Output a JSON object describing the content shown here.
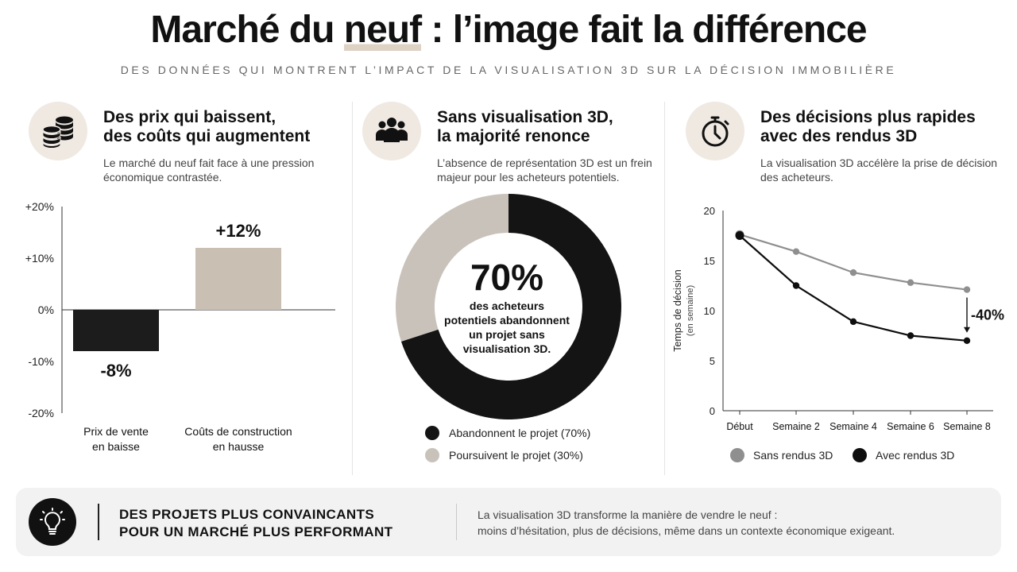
{
  "header": {
    "title_pre": "Marché du ",
    "title_highlight": "neuf",
    "title_post": " : l’image fait la différence",
    "subtitle": "DES DONNÉES QUI MONTRENT L’IMPACT DE LA VISUALISATION 3D SUR LA DÉCISION IMMOBILIÈRE"
  },
  "columns": [
    {
      "icon": "coins-stack-icon",
      "title_line1": "Des prix qui baissent,",
      "title_line2": "des coûts qui augmentent",
      "desc_line1": "Le marché du neuf fait face à une pression",
      "desc_line2": "économique contrastée."
    },
    {
      "icon": "people-group-icon",
      "title_line1": "Sans visualisation 3D,",
      "title_line2": "la majorité renonce",
      "desc_line1": "L’absence de représentation 3D est un frein",
      "desc_line2": "majeur pour les acheteurs potentiels."
    },
    {
      "icon": "stopwatch-icon",
      "title_line1": "Des décisions plus rapides",
      "title_line2": "avec des rendus 3D",
      "desc_line1": "La visualisation 3D accélère la prise de décision",
      "desc_line2": "des acheteurs."
    }
  ],
  "chart_data": [
    {
      "type": "bar",
      "categories": [
        [
          "Prix de vente",
          "en baisse"
        ],
        [
          "Coûts de construction",
          "en hausse"
        ]
      ],
      "values": [
        -8,
        12
      ],
      "value_labels": [
        "-8%",
        "+12%"
      ],
      "colors": [
        "#1c1c1c",
        "#c9bfb3"
      ],
      "yticks": [
        "+20%",
        "+10%",
        "0%",
        "-10%",
        "-20%"
      ],
      "ylim": [
        -20,
        20
      ]
    },
    {
      "type": "pie",
      "slices": [
        {
          "label": "Abandonnent le projet (70%)",
          "value": 70,
          "color": "#141414"
        },
        {
          "label": "Poursuivent le projet (30%)",
          "value": 30,
          "color": "#c9c2ba"
        }
      ],
      "center_value": "70%",
      "center_text": [
        "des acheteurs",
        "potentiels abandonnent",
        "un projet sans",
        "visualisation 3D."
      ]
    },
    {
      "type": "line",
      "categories": [
        "Début",
        "Semaine 2",
        "Semaine 4",
        "Semaine 6",
        "Semaine 8"
      ],
      "ylabel": "Temps de décision",
      "ylabel2": "(en semaine)",
      "yticks": [
        "20",
        "15",
        "10",
        "5",
        "0"
      ],
      "ylim": [
        0,
        20
      ],
      "series": [
        {
          "name": "Sans rendus 3D",
          "values": [
            17.6,
            15.9,
            13.8,
            12.8,
            12.1
          ],
          "color": "#8f8f8f"
        },
        {
          "name": "Avec rendus 3D",
          "values": [
            17.5,
            12.5,
            8.9,
            7.5,
            7.0
          ],
          "color": "#0e0e0e"
        }
      ],
      "annotation": "-40%"
    }
  ],
  "banner": {
    "icon": "lightbulb-icon",
    "heading_line1": "DES PROJETS PLUS CONVAINCANTS",
    "heading_line2": "POUR UN MARCHÉ PLUS PERFORMANT",
    "text_line1": "La visualisation 3D transforme la manière de vendre le neuf :",
    "text_line2": "moins d’hésitation, plus de décisions, même dans un contexte économique exigeant."
  }
}
